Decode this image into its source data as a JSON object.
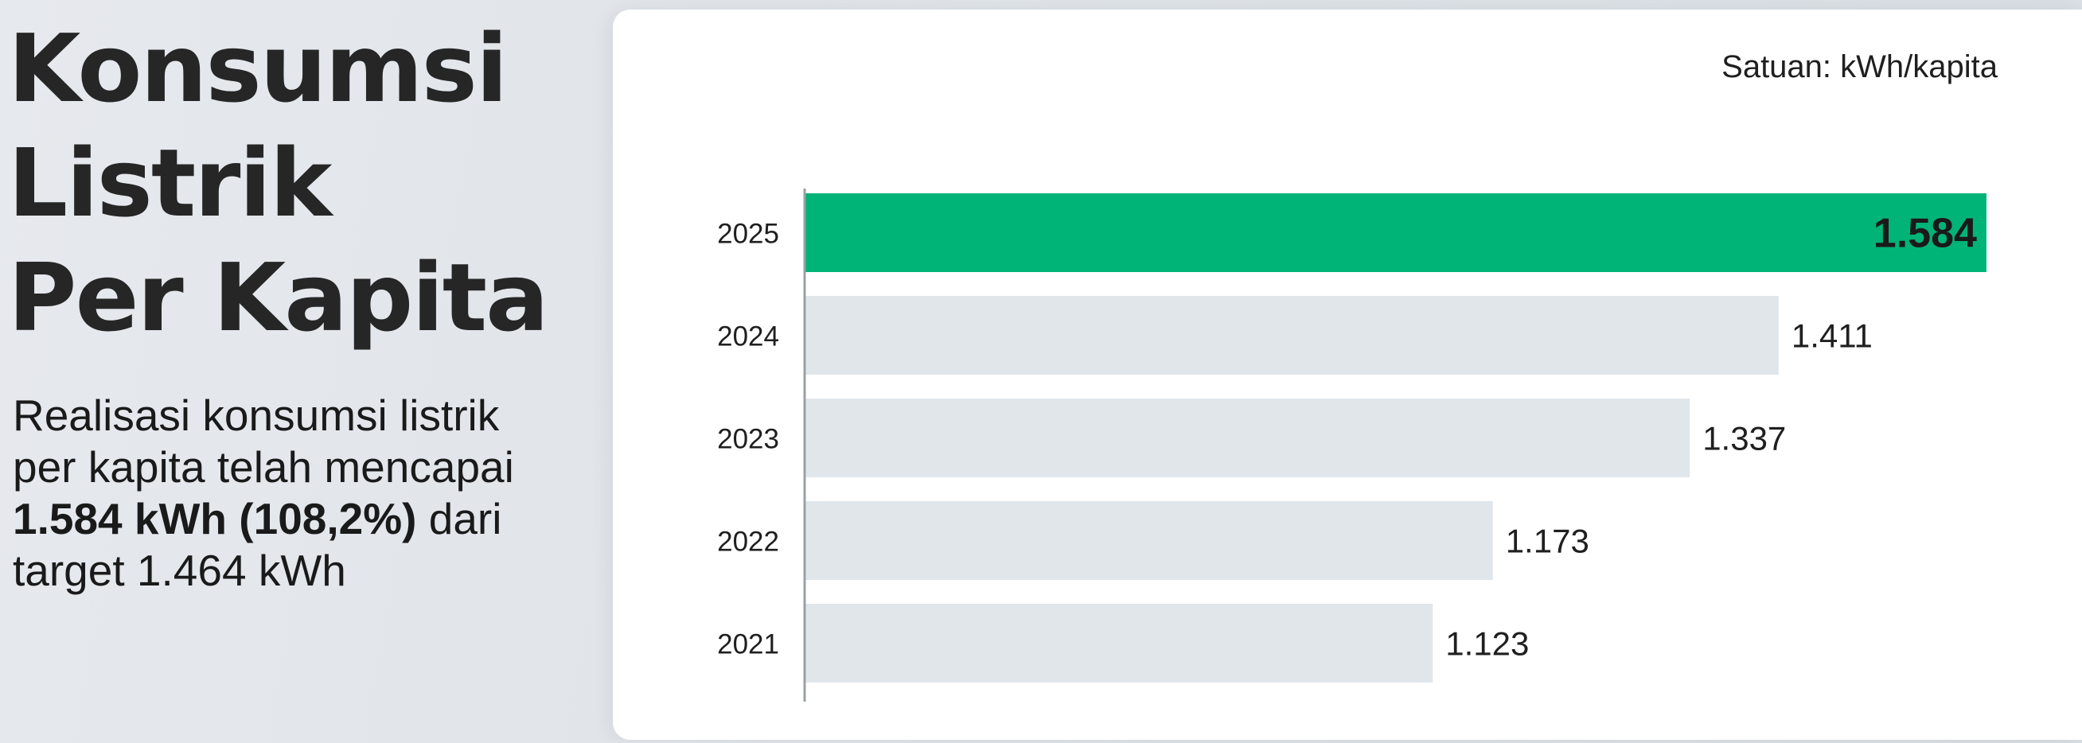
{
  "heading": {
    "line1": "Konsumsi",
    "line2": "Listrik",
    "line3": "Per Kapita"
  },
  "description": {
    "line1": "Realisasi konsumsi listrik",
    "line2": "per kapita telah mencapai",
    "line3_bold": "1.584 kWh (108,2%)",
    "line3_rest": " dari",
    "line4": "target 1.464 kWh"
  },
  "colors": {
    "highlight_bar": "#00b377",
    "default_bar": "#e1e6ea",
    "axis": "#9aa0a6"
  },
  "chart_data": {
    "type": "bar",
    "orientation": "horizontal",
    "unit_label": "Satuan: kWh/kapita",
    "categories": [
      "2025",
      "2024",
      "2023",
      "2022",
      "2021"
    ],
    "values": [
      1584,
      1411,
      1337,
      1173,
      1123
    ],
    "value_labels": [
      "1.584",
      "1.411",
      "1.337",
      "1.173",
      "1.123"
    ],
    "highlight": "2025",
    "xlim": [
      600,
      1590
    ],
    "grid": false,
    "legend": "none"
  }
}
